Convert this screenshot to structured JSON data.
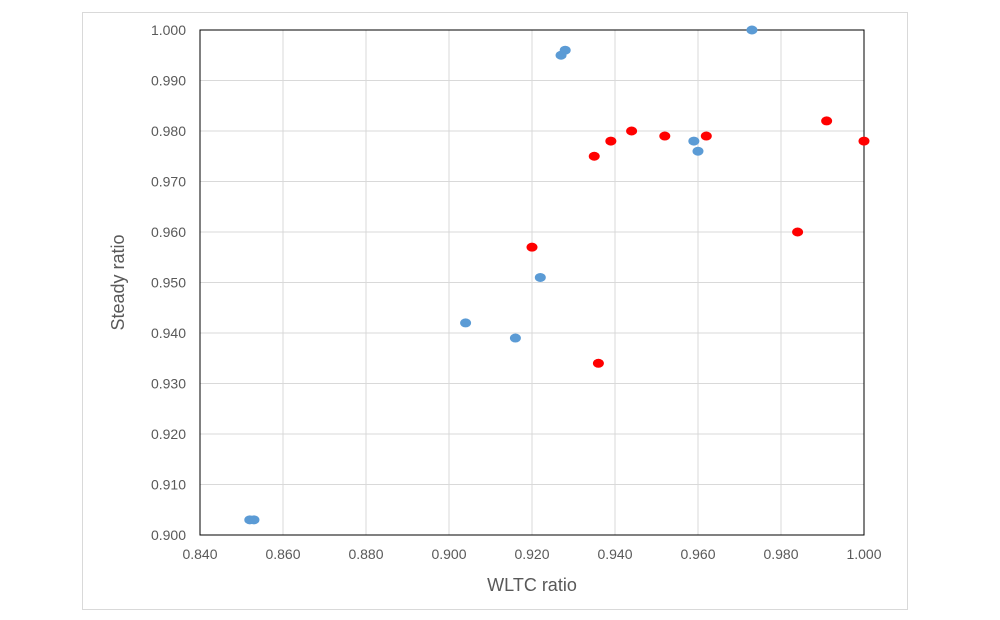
{
  "chart_data": {
    "type": "scatter",
    "title": "",
    "xlabel": "WLTC ratio",
    "ylabel": "Steady ratio",
    "xlim": [
      0.84,
      1.0
    ],
    "ylim": [
      0.9,
      1.0
    ],
    "x_ticks": [
      "0.840",
      "0.860",
      "0.880",
      "0.900",
      "0.920",
      "0.940",
      "0.960",
      "0.980",
      "1.000"
    ],
    "y_ticks": [
      "0.900",
      "0.910",
      "0.920",
      "0.930",
      "0.940",
      "0.950",
      "0.960",
      "0.970",
      "0.980",
      "0.990",
      "1.000"
    ],
    "grid": true,
    "legend": "none",
    "series": [
      {
        "color": "#5b9bd5",
        "points": [
          {
            "x": 0.852,
            "y": 0.903
          },
          {
            "x": 0.853,
            "y": 0.903
          },
          {
            "x": 0.904,
            "y": 0.942
          },
          {
            "x": 0.916,
            "y": 0.939
          },
          {
            "x": 0.922,
            "y": 0.951
          },
          {
            "x": 0.927,
            "y": 0.995
          },
          {
            "x": 0.928,
            "y": 0.996
          },
          {
            "x": 0.959,
            "y": 0.978
          },
          {
            "x": 0.96,
            "y": 0.976
          },
          {
            "x": 0.973,
            "y": 1.0
          }
        ]
      },
      {
        "color": "#ff0000",
        "points": [
          {
            "x": 0.92,
            "y": 0.957
          },
          {
            "x": 0.935,
            "y": 0.975
          },
          {
            "x": 0.936,
            "y": 0.934
          },
          {
            "x": 0.939,
            "y": 0.978
          },
          {
            "x": 0.944,
            "y": 0.98
          },
          {
            "x": 0.952,
            "y": 0.979
          },
          {
            "x": 0.962,
            "y": 0.979
          },
          {
            "x": 0.984,
            "y": 0.96
          },
          {
            "x": 0.991,
            "y": 0.982
          },
          {
            "x": 1.0,
            "y": 0.978
          }
        ]
      }
    ]
  }
}
